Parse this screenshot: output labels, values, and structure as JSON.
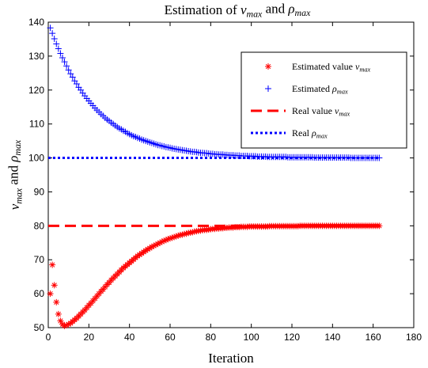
{
  "chart_data": {
    "type": "scatter",
    "title": [
      "Estimation of ",
      {
        "i": "v",
        "sub": "max"
      },
      " and ",
      {
        "i": "ρ",
        "sub": "max"
      }
    ],
    "xlabel": [
      "Iteration"
    ],
    "ylabel": [
      {
        "i": "v",
        "sub": "max"
      },
      " and ",
      {
        "i": "ρ",
        "sub": "max"
      }
    ],
    "xlim": [
      0,
      180
    ],
    "ylim": [
      50,
      140
    ],
    "xticks": [
      0,
      20,
      40,
      60,
      80,
      100,
      120,
      140,
      160,
      180
    ],
    "yticks": [
      50,
      60,
      70,
      80,
      90,
      100,
      110,
      120,
      130,
      140
    ],
    "legend": "upper right",
    "x": [
      1,
      2,
      3,
      4,
      5,
      6,
      7,
      8,
      9,
      10,
      11,
      12,
      13,
      14,
      15,
      16,
      17,
      18,
      19,
      20,
      21,
      22,
      23,
      24,
      25,
      26,
      27,
      28,
      29,
      30,
      31,
      32,
      33,
      34,
      35,
      36,
      37,
      38,
      39,
      40,
      41,
      42,
      43,
      44,
      45,
      46,
      47,
      48,
      49,
      50,
      51,
      52,
      53,
      54,
      55,
      56,
      57,
      58,
      59,
      60,
      61,
      62,
      63,
      64,
      65,
      66,
      67,
      68,
      69,
      70,
      71,
      72,
      73,
      74,
      75,
      76,
      77,
      78,
      79,
      80,
      81,
      82,
      83,
      84,
      85,
      86,
      87,
      88,
      89,
      90,
      91,
      92,
      93,
      94,
      95,
      96,
      97,
      98,
      99,
      100,
      101,
      102,
      103,
      104,
      105,
      106,
      107,
      108,
      109,
      110,
      111,
      112,
      113,
      114,
      115,
      116,
      117,
      118,
      119,
      120,
      121,
      122,
      123,
      124,
      125,
      126,
      127,
      128,
      129,
      130,
      131,
      132,
      133,
      134,
      135,
      136,
      137,
      138,
      139,
      140,
      141,
      142,
      143,
      144,
      145,
      146,
      147,
      148,
      149,
      150,
      151,
      152,
      153,
      154,
      155,
      156,
      157,
      158,
      159,
      160,
      161,
      162,
      163
    ],
    "series": [
      {
        "name": [
          "Estimated value ",
          {
            "i": "v",
            "sub": "max"
          }
        ],
        "color": "#ff0000",
        "marker": "*",
        "values": [
          60,
          68.5,
          62.5,
          57.5,
          54,
          52,
          51,
          50.5,
          50.7,
          51.0,
          51.3,
          51.8,
          52.3,
          52.8,
          53.4,
          54.0,
          54.6,
          55.2,
          55.9,
          56.6,
          57.2,
          57.9,
          58.6,
          59.3,
          60.0,
          60.7,
          61.3,
          62.0,
          62.7,
          63.3,
          64.0,
          64.6,
          65.2,
          65.8,
          66.4,
          67.0,
          67.6,
          68.1,
          68.6,
          69.1,
          69.6,
          70.1,
          70.6,
          71.1,
          71.5,
          71.9,
          72.3,
          72.7,
          73.1,
          73.4,
          73.8,
          74.1,
          74.4,
          74.7,
          75.0,
          75.3,
          75.6,
          75.8,
          76.1,
          76.3,
          76.5,
          76.7,
          76.9,
          77.1,
          77.3,
          77.4,
          77.6,
          77.7,
          77.9,
          78.0,
          78.1,
          78.3,
          78.4,
          78.5,
          78.6,
          78.7,
          78.8,
          78.8,
          78.9,
          79.0,
          79.1,
          79.1,
          79.2,
          79.2,
          79.3,
          79.3,
          79.4,
          79.4,
          79.5,
          79.5,
          79.5,
          79.6,
          79.6,
          79.6,
          79.7,
          79.7,
          79.7,
          79.7,
          79.8,
          79.8,
          79.8,
          79.8,
          79.8,
          79.8,
          79.8,
          79.8,
          79.8,
          79.8,
          79.9,
          79.9,
          79.9,
          79.9,
          79.9,
          79.9,
          79.9,
          79.9,
          79.9,
          79.9,
          79.9,
          79.9,
          79.9,
          79.9,
          79.9,
          80,
          80,
          80,
          80,
          80,
          80,
          80,
          80,
          80,
          80,
          80,
          80,
          80,
          80,
          80,
          80,
          80,
          80,
          80,
          80,
          80,
          80,
          80,
          80,
          80,
          80,
          80,
          80,
          80,
          80,
          80,
          80,
          80,
          80,
          80,
          80,
          80,
          80,
          80,
          80
        ]
      },
      {
        "name": [
          "Estimated ",
          {
            "i": "ρ",
            "sub": "max"
          }
        ],
        "color": "#0000ff",
        "marker": "+",
        "values": [
          138.3,
          136.7,
          135.1,
          133.6,
          132.2,
          130.8,
          129.5,
          128.3,
          127.1,
          125.9,
          124.8,
          123.8,
          122.7,
          121.8,
          120.8,
          120.0,
          119.1,
          118.3,
          117.5,
          116.8,
          116.1,
          115.4,
          114.7,
          114.1,
          113.5,
          112.9,
          112.4,
          111.8,
          111.3,
          110.9,
          110.4,
          110.0,
          109.5,
          109.1,
          108.7,
          108.4,
          108.0,
          107.7,
          107.3,
          107.0,
          106.7,
          106.4,
          106.2,
          105.9,
          105.7,
          105.4,
          105.2,
          105.0,
          104.8,
          104.6,
          104.4,
          104.2,
          104.0,
          103.8,
          103.7,
          103.5,
          103.4,
          103.2,
          103.1,
          103.0,
          102.8,
          102.7,
          102.6,
          102.5,
          102.4,
          102.3,
          102.2,
          102.1,
          102.0,
          101.9,
          101.8,
          101.8,
          101.7,
          101.6,
          101.5,
          101.5,
          101.4,
          101.4,
          101.3,
          101.2,
          101.2,
          101.1,
          101.1,
          101.0,
          101.0,
          101.0,
          100.9,
          100.9,
          100.8,
          100.8,
          100.8,
          100.7,
          100.7,
          100.7,
          100.6,
          100.6,
          100.6,
          100.6,
          100.5,
          100.5,
          100.5,
          100.5,
          100.4,
          100.4,
          100.4,
          100.4,
          100.4,
          100.3,
          100.3,
          100.3,
          100.3,
          100.3,
          100.3,
          100.3,
          100.3,
          100.3,
          100.3,
          100.2,
          100.2,
          100.2,
          100.2,
          100.2,
          100.2,
          100.2,
          100.2,
          100.2,
          100.2,
          100.2,
          100.2,
          100.2,
          100.1,
          100.1,
          100.1,
          100.1,
          100.1,
          100.1,
          100.1,
          100.1,
          100.1,
          100.1,
          100.1,
          100.1,
          100.1,
          100.1,
          100.1,
          100.1,
          100.1,
          100.1,
          100,
          100,
          100,
          100,
          100,
          100,
          100,
          100,
          100,
          100,
          100,
          100,
          100,
          100,
          100
        ]
      },
      {
        "name": [
          "Real value ",
          {
            "i": "v",
            "sub": "max"
          }
        ],
        "color": "#ff0000",
        "line": "dashed",
        "x": [
          0,
          163
        ],
        "values": [
          80,
          80
        ]
      },
      {
        "name": [
          "Real ",
          {
            "i": "ρ",
            "sub": "max"
          }
        ],
        "color": "#0000ff",
        "line": "dotted",
        "x": [
          0,
          163
        ],
        "values": [
          100,
          100
        ]
      }
    ]
  }
}
